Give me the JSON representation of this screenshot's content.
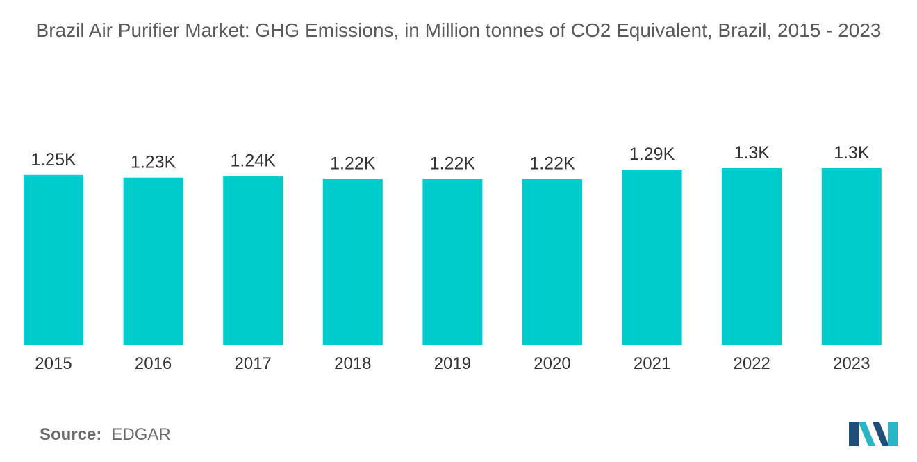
{
  "chart_data": {
    "type": "bar",
    "title": "Brazil Air Purifier Market: GHG Emissions, in Million tonnes of CO2 Equivalent, Brazil, 2015 - 2023",
    "categories": [
      "2015",
      "2016",
      "2017",
      "2018",
      "2019",
      "2020",
      "2021",
      "2022",
      "2023"
    ],
    "values": [
      1250,
      1230,
      1240,
      1220,
      1220,
      1220,
      1290,
      1300,
      1300
    ],
    "data_labels": [
      "1.25K",
      "1.23K",
      "1.24K",
      "1.22K",
      "1.22K",
      "1.22K",
      "1.29K",
      "1.3K",
      "1.3K"
    ],
    "xlabel": "",
    "ylabel": "",
    "ylim": [
      0,
      1300
    ],
    "grid": false,
    "legend": "none",
    "bar_color": "#00CCCC"
  },
  "source": {
    "label": "Source:",
    "value": "EDGAR"
  },
  "logo": {
    "icon": "mordor-intelligence-logo",
    "colors": [
      "#1F4E79",
      "#27B5C7"
    ]
  }
}
